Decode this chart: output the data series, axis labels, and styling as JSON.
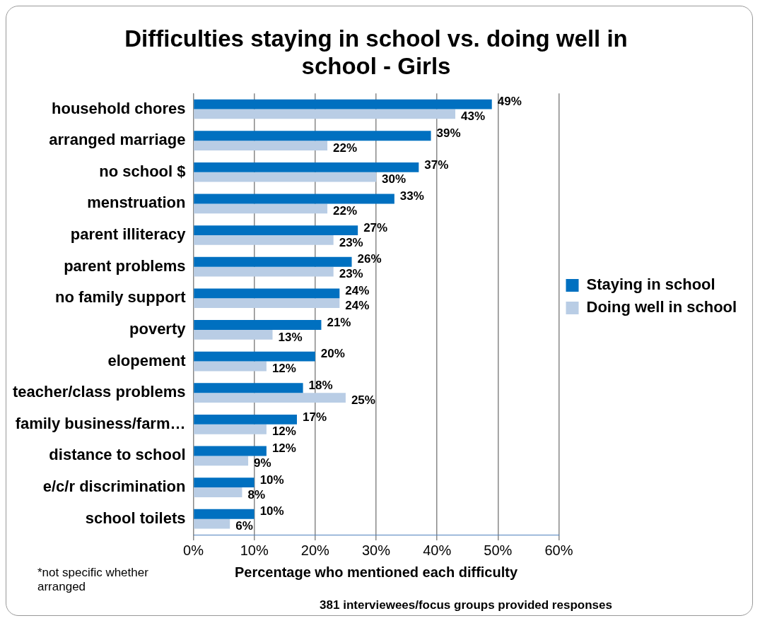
{
  "chart_data": {
    "type": "bar",
    "orientation": "horizontal",
    "title": "Difficulties staying in school vs. doing well in school - Girls",
    "xlabel": "Percentage who mentioned each difficulty",
    "categories": [
      "household chores",
      "arranged marriage",
      "no school $",
      "menstruation",
      "parent illiteracy",
      "parent problems",
      "no family support",
      "poverty",
      "elopement",
      "teacher/class problems",
      "family business/farm…",
      "distance to school",
      "e/c/r discrimination",
      "school toilets"
    ],
    "series": [
      {
        "name": "Staying in school",
        "color": "#0070c0",
        "values": [
          49,
          39,
          37,
          33,
          27,
          26,
          24,
          21,
          20,
          18,
          17,
          12,
          10,
          10
        ],
        "value_labels": [
          "49%",
          "39%",
          "37%",
          "33%",
          "27%",
          "26%",
          "24%",
          "21%",
          "20%",
          "18%",
          "17%",
          "12%",
          "10%",
          "10%"
        ]
      },
      {
        "name": "Doing well in school",
        "color": "#b9cde5",
        "values": [
          43,
          22,
          30,
          22,
          23,
          23,
          24,
          13,
          12,
          25,
          12,
          9,
          8,
          6
        ],
        "value_labels": [
          "43%",
          "22%",
          "30%",
          "22%",
          "23%",
          "23%",
          "24%",
          "13%",
          "12%",
          "25%",
          "12%",
          "9%",
          "8%",
          "6%"
        ]
      }
    ],
    "xlim": [
      0,
      60
    ],
    "xticks": [
      {
        "value": 0,
        "label": "0%"
      },
      {
        "value": 10,
        "label": "10%"
      },
      {
        "value": 20,
        "label": "20%"
      },
      {
        "value": 30,
        "label": "30%"
      },
      {
        "value": 40,
        "label": "40%"
      },
      {
        "value": 50,
        "label": "50%"
      },
      {
        "value": 60,
        "label": "60%"
      }
    ],
    "grid": "x",
    "legend": "right",
    "annotations": [
      "*not specific whether arranged",
      "381 interviewees/focus groups provided responses"
    ]
  }
}
